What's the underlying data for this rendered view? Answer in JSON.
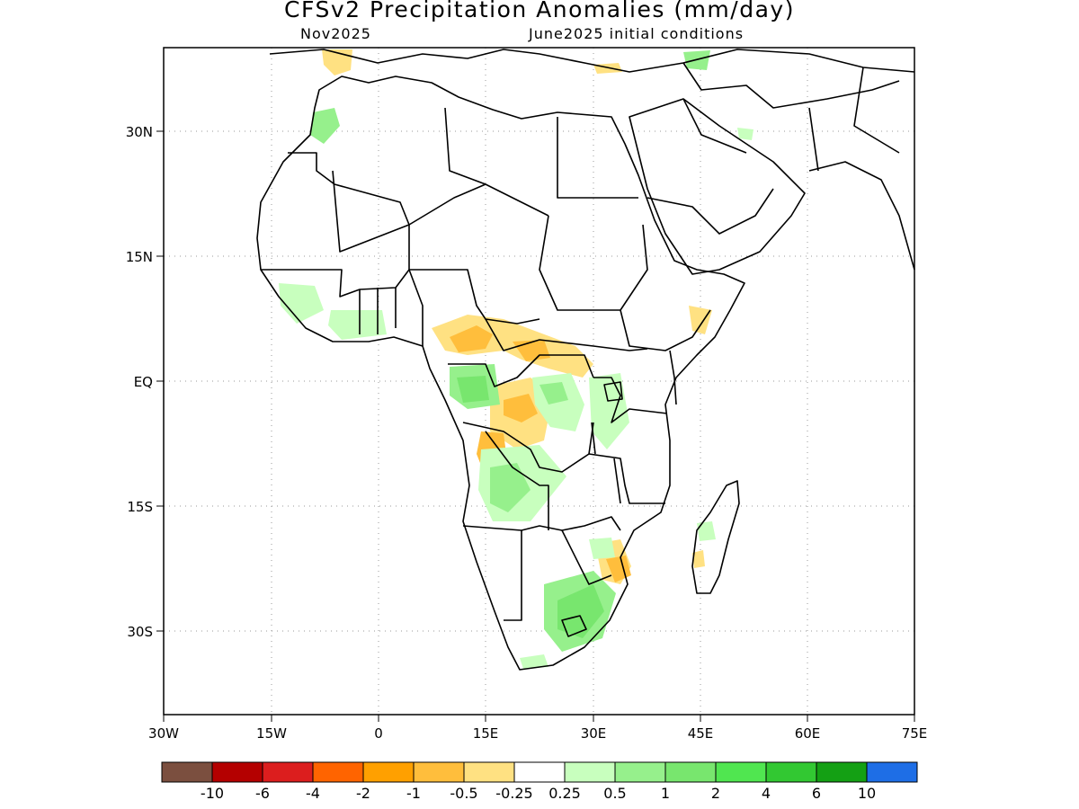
{
  "header": {
    "title": "CFSv2 Precipitation Anomalies (mm/day)",
    "valid_month": "Nov2025",
    "init_conditions": "June2025 initial conditions"
  },
  "axes": {
    "lon_ticks": [
      "30W",
      "15W",
      "0",
      "15E",
      "30E",
      "45E",
      "60E",
      "75E"
    ],
    "lat_ticks": [
      "30N",
      "15N",
      "EQ",
      "15S",
      "30S"
    ],
    "lon_range": [
      -30,
      75
    ],
    "lat_range": [
      -40,
      40
    ],
    "grid": "dotted"
  },
  "colorbar": {
    "colors": [
      "#7b4f3f",
      "#b40000",
      "#dc1e1e",
      "#ff6400",
      "#ffa000",
      "#ffbe3c",
      "#ffe182",
      "#ffffff",
      "#c8ffbe",
      "#96f08c",
      "#78e66e",
      "#50e650",
      "#32c832",
      "#14a014",
      "#1e6ee6"
    ],
    "labels": [
      "-10",
      "-6",
      "-4",
      "-2",
      "-1",
      "-0.5",
      "-0.25",
      "0.25",
      "0.5",
      "1",
      "2",
      "4",
      "6",
      "10"
    ]
  },
  "legend_colors": {
    "dry_light": "#ffe182",
    "dry_moderate": "#ffbe3c",
    "wet_light": "#c8ffbe",
    "wet_moderate": "#96f08c",
    "wet_strong": "#78e66e"
  }
}
